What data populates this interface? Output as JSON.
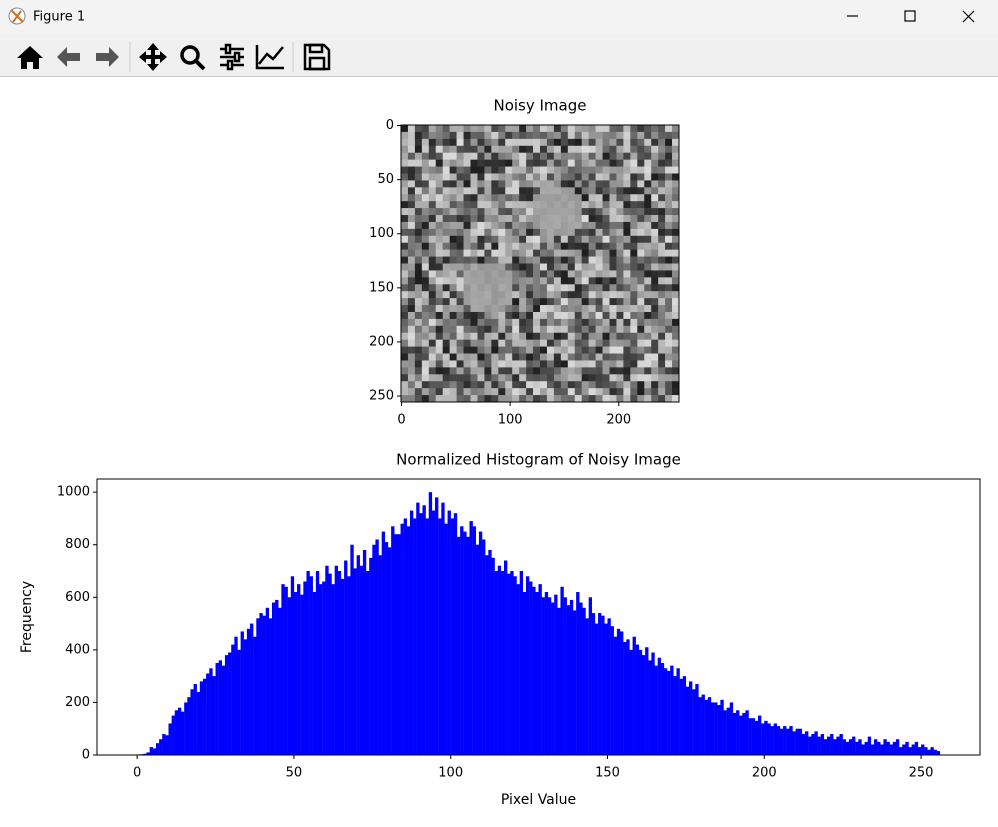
{
  "window": {
    "title": "Figure 1"
  },
  "chart_data": [
    {
      "type": "image",
      "title": "Noisy Image",
      "xlim": [
        -0.5,
        255.5
      ],
      "ylim": [
        255.5,
        -0.5
      ],
      "xticks": [
        0,
        100,
        200
      ],
      "yticks": [
        0,
        50,
        100,
        150,
        200,
        250
      ]
    },
    {
      "type": "histogram",
      "title": "Normalized Histogram of Noisy Image",
      "x_label": "Pixel Value",
      "y_label": "Frequency",
      "color": "#0000ff",
      "xlim": [
        -12.8,
        268.8
      ],
      "ylim": [
        0,
        1050
      ],
      "xticks": [
        0,
        50,
        100,
        150,
        200,
        250
      ],
      "yticks": [
        0,
        200,
        400,
        600,
        800,
        1000
      ],
      "bins": [
        0,
        1,
        2,
        3,
        4,
        5,
        6,
        7,
        8,
        9,
        10,
        11,
        12,
        13,
        14,
        15,
        16,
        17,
        18,
        19,
        20,
        21,
        22,
        23,
        24,
        25,
        26,
        27,
        28,
        29,
        30,
        31,
        32,
        33,
        34,
        35,
        36,
        37,
        38,
        39,
        40,
        41,
        42,
        43,
        44,
        45,
        46,
        47,
        48,
        49,
        50,
        51,
        52,
        53,
        54,
        55,
        56,
        57,
        58,
        59,
        60,
        61,
        62,
        63,
        64,
        65,
        66,
        67,
        68,
        69,
        70,
        71,
        72,
        73,
        74,
        75,
        76,
        77,
        78,
        79,
        80,
        81,
        82,
        83,
        84,
        85,
        86,
        87,
        88,
        89,
        90,
        91,
        92,
        93,
        94,
        95,
        96,
        97,
        98,
        99,
        100,
        101,
        102,
        103,
        104,
        105,
        106,
        107,
        108,
        109,
        110,
        111,
        112,
        113,
        114,
        115,
        116,
        117,
        118,
        119,
        120,
        121,
        122,
        123,
        124,
        125,
        126,
        127,
        128,
        129,
        130,
        131,
        132,
        133,
        134,
        135,
        136,
        137,
        138,
        139,
        140,
        141,
        142,
        143,
        144,
        145,
        146,
        147,
        148,
        149,
        150,
        151,
        152,
        153,
        154,
        155,
        156,
        157,
        158,
        159,
        160,
        161,
        162,
        163,
        164,
        165,
        166,
        167,
        168,
        169,
        170,
        171,
        172,
        173,
        174,
        175,
        176,
        177,
        178,
        179,
        180,
        181,
        182,
        183,
        184,
        185,
        186,
        187,
        188,
        189,
        190,
        191,
        192,
        193,
        194,
        195,
        196,
        197,
        198,
        199,
        200,
        201,
        202,
        203,
        204,
        205,
        206,
        207,
        208,
        209,
        210,
        211,
        212,
        213,
        214,
        215,
        216,
        217,
        218,
        219,
        220,
        221,
        222,
        223,
        224,
        225,
        226,
        227,
        228,
        229,
        230,
        231,
        232,
        233,
        234,
        235,
        236,
        237,
        238,
        239,
        240,
        241,
        242,
        243,
        244,
        245,
        246,
        247,
        248,
        249,
        250,
        251,
        252,
        253,
        254,
        255,
        256
      ],
      "values": [
        2,
        3,
        5,
        10,
        30,
        25,
        45,
        60,
        80,
        75,
        120,
        150,
        170,
        180,
        165,
        200,
        220,
        250,
        270,
        240,
        280,
        290,
        310,
        330,
        300,
        350,
        360,
        340,
        380,
        390,
        420,
        450,
        400,
        470,
        440,
        480,
        500,
        450,
        520,
        540,
        530,
        560,
        520,
        580,
        590,
        560,
        650,
        640,
        600,
        680,
        620,
        650,
        610,
        660,
        700,
        680,
        620,
        700,
        650,
        660,
        720,
        690,
        650,
        720,
        700,
        670,
        740,
        680,
        800,
        710,
        760,
        720,
        780,
        700,
        750,
        800,
        820,
        760,
        850,
        810,
        790,
        870,
        840,
        840,
        880,
        900,
        870,
        930,
        900,
        960,
        920,
        950,
        900,
        1000,
        930,
        980,
        900,
        960,
        880,
        930,
        900,
        920,
        830,
        870,
        850,
        830,
        890,
        870,
        800,
        850,
        820,
        760,
        780,
        750,
        700,
        720,
        700,
        740,
        690,
        700,
        680,
        650,
        700,
        620,
        680,
        660,
        640,
        620,
        650,
        600,
        620,
        600,
        580,
        610,
        560,
        640,
        600,
        570,
        590,
        550,
        620,
        580,
        560,
        520,
        600,
        540,
        500,
        540,
        530,
        500,
        520,
        490,
        450,
        480,
        470,
        430,
        440,
        400,
        450,
        420,
        400,
        380,
        410,
        360,
        390,
        340,
        370,
        350,
        330,
        320,
        340,
        300,
        330,
        290,
        300,
        260,
        280,
        250,
        270,
        220,
        230,
        210,
        220,
        200,
        200,
        190,
        210,
        170,
        180,
        200,
        160,
        170,
        150,
        160,
        170,
        140,
        140,
        130,
        150,
        120,
        130,
        120,
        110,
        120,
        110,
        100,
        110,
        100,
        110,
        90,
        100,
        100,
        80,
        90,
        70,
        80,
        90,
        70,
        80,
        60,
        70,
        80,
        60,
        70,
        80,
        60,
        50,
        60,
        70,
        50,
        60,
        40,
        50,
        70,
        40,
        60,
        50,
        40,
        60,
        50,
        40,
        50,
        60,
        30,
        40,
        50,
        30,
        40,
        50,
        30,
        40,
        30,
        20,
        30,
        20,
        15
      ]
    }
  ]
}
